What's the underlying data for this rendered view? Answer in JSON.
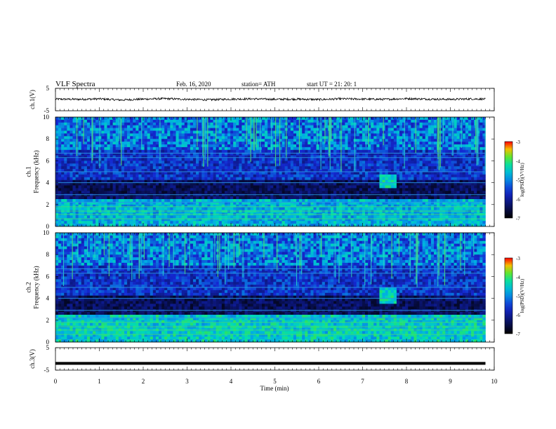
{
  "header": {
    "title": "VLF  Spectra",
    "date": "Feb. 16, 2020",
    "station": "station= ATH",
    "start": "start  UT  =    21: 20: 1"
  },
  "colors": {
    "background": "#ffffff",
    "spectrogram_low": "#000000",
    "spectrogram_mid": "#1428c8",
    "spectrogram_high": "#00dcc8",
    "spectrogram_peak": "#ff0000"
  },
  "chart_data": [
    {
      "type": "line",
      "panel": "ch1-waveform",
      "ylabel": "ch.1(V)",
      "ylim": [
        -5,
        5
      ],
      "yticks": [
        "5",
        "-5"
      ],
      "x": [
        0,
        0.5,
        1,
        1.5,
        2,
        2.5,
        3,
        3.5,
        4,
        4.5,
        5,
        5.5,
        6,
        6.5,
        7,
        7.5,
        8,
        8.5,
        9,
        9.5,
        9.8
      ],
      "values": [
        0.2,
        0.1,
        0.3,
        -0.2,
        0.2,
        0.4,
        0.1,
        -0.1,
        0.2,
        0.3,
        0.1,
        0.2,
        0.0,
        0.3,
        0.2,
        0.1,
        0.4,
        0.2,
        0.1,
        0.3,
        0.2
      ]
    },
    {
      "type": "heatmap",
      "panel": "ch1-spectrogram",
      "ylabel": "ch.1\nFrequency  (kHz)",
      "ylim": [
        0,
        10
      ],
      "yticks": [
        "0",
        "2",
        "4",
        "6",
        "8",
        "10"
      ],
      "colorbar": {
        "label": "log(PSD)(V²/Hz)",
        "ticks": [
          "-3",
          "-4",
          "-5",
          "-6",
          "-7"
        ],
        "range": [
          -7,
          -3
        ]
      },
      "feature_patch": {
        "time_min": [
          7.4,
          7.75
        ],
        "freq_khz": [
          3.6,
          4.8
        ]
      }
    },
    {
      "type": "heatmap",
      "panel": "ch2-spectrogram",
      "ylabel": "ch.2\nFrequency  (kHz)",
      "ylim": [
        0,
        10
      ],
      "yticks": [
        "0",
        "2",
        "4",
        "6",
        "8",
        "10"
      ],
      "colorbar": {
        "label": "log(PSD)(V²/Hz)",
        "ticks": [
          "-3",
          "-4",
          "-5",
          "-6",
          "-7"
        ],
        "range": [
          -7,
          -3
        ]
      },
      "feature_patch": {
        "time_min": [
          7.4,
          7.75
        ],
        "freq_khz": [
          3.4,
          5.0
        ]
      }
    },
    {
      "type": "line",
      "panel": "ch3-waveform",
      "ylabel": "ch.3(V)",
      "ylim": [
        -5,
        5
      ],
      "yticks": [
        "5",
        "-5"
      ],
      "x": [
        0,
        9.8
      ],
      "values": [
        -2,
        -2
      ]
    }
  ],
  "xaxis": {
    "label": "Time  (min)",
    "ticks": [
      "0",
      "1",
      "2",
      "3",
      "4",
      "5",
      "6",
      "7",
      "8",
      "9",
      "10"
    ],
    "range": [
      0,
      10
    ]
  }
}
